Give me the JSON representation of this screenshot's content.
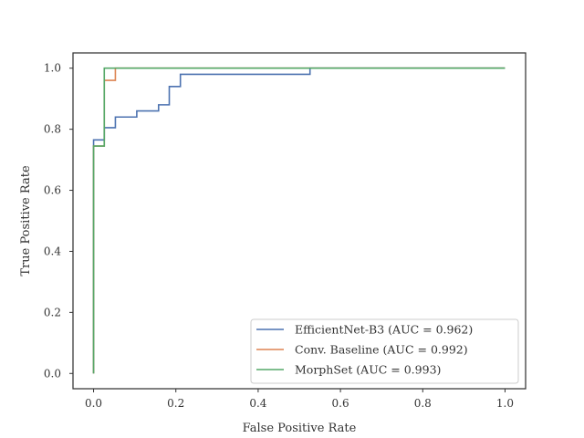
{
  "chart_data": {
    "type": "line",
    "xlabel": "False Positive Rate",
    "ylabel": "True Positive Rate",
    "xlim": [
      -0.05,
      1.05
    ],
    "ylim": [
      -0.05,
      1.05
    ],
    "xticks": [
      "0.0",
      "0.2",
      "0.4",
      "0.6",
      "0.8",
      "1.0"
    ],
    "yticks": [
      "0.0",
      "0.2",
      "0.4",
      "0.6",
      "0.8",
      "1.0"
    ],
    "grid": false,
    "legend_position": "lower-right",
    "series": [
      {
        "name": "EfficientNet-B3 (AUC = 0.962)",
        "color": "#4c72b0",
        "x": [
          0.0,
          0.0,
          0.0,
          0.026,
          0.026,
          0.053,
          0.053,
          0.105,
          0.105,
          0.158,
          0.158,
          0.184,
          0.184,
          0.211,
          0.211,
          0.526,
          0.526,
          1.0
        ],
        "y": [
          0.0,
          0.74,
          0.765,
          0.765,
          0.805,
          0.805,
          0.84,
          0.84,
          0.86,
          0.86,
          0.88,
          0.88,
          0.94,
          0.94,
          0.98,
          0.98,
          1.0,
          1.0
        ]
      },
      {
        "name": "Conv. Baseline (AUC = 0.992)",
        "color": "#dd8452",
        "x": [
          0.0,
          0.0,
          0.026,
          0.026,
          0.053,
          0.053,
          1.0
        ],
        "y": [
          0.0,
          0.745,
          0.745,
          0.96,
          0.96,
          1.0,
          1.0
        ]
      },
      {
        "name": "MorphSet (AUC = 0.993)",
        "color": "#55a868",
        "x": [
          0.0,
          0.0,
          0.026,
          0.026,
          1.0
        ],
        "y": [
          0.0,
          0.745,
          0.745,
          1.0,
          1.0
        ]
      }
    ]
  }
}
